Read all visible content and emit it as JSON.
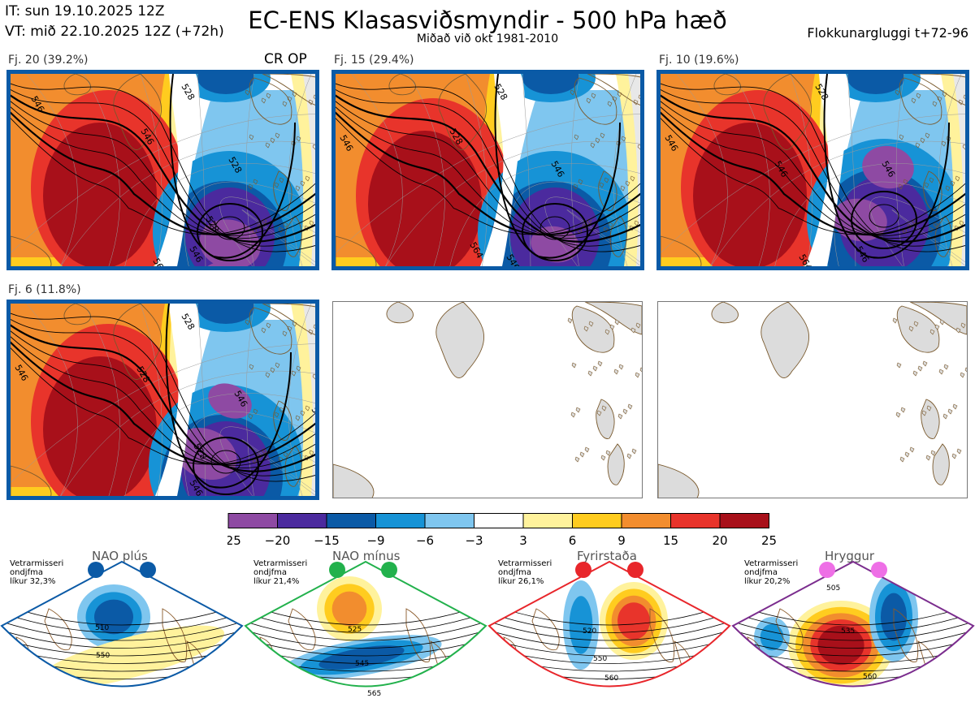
{
  "header": {
    "it_line": "IT: sun 19.10.2025 12Z",
    "vt_line": "VT: mið 22.10.2025 12Z  (+72h)",
    "title": "EC-ENS Klasasviðsmyndir - 500 hPa hæð",
    "subtitle": "Miðað við okt 1981-2010",
    "window": "Flokkunargluggi t+72-96"
  },
  "clusters": [
    {
      "label": "Fj. 20 (39.2%)",
      "tag": "CR OP",
      "contours": [
        "546",
        "528",
        "528",
        "546",
        "564",
        "546",
        "528",
        "564"
      ]
    },
    {
      "label": "Fj. 15 (29.4%)",
      "tag": "",
      "contours": [
        "546",
        "528",
        "546",
        "528",
        "564",
        "546",
        "564"
      ]
    },
    {
      "label": "Fj. 10 (19.6%)",
      "tag": "",
      "contours": [
        "546",
        "528",
        "546",
        "546",
        "564",
        "546",
        "564"
      ]
    },
    {
      "label": "Fj. 6 (11.8%)",
      "tag": "",
      "contours": [
        "546",
        "528",
        "546",
        "528",
        "546",
        "528",
        "564",
        "546"
      ]
    }
  ],
  "colorbar": {
    "ticks": [
      "−25",
      "−20",
      "−15",
      "−9",
      "−6",
      "−3",
      "3",
      "6",
      "9",
      "15",
      "20",
      "25"
    ],
    "colors": [
      "#8e4aa3",
      "#4b2a9e",
      "#0b5aa6",
      "#1793d6",
      "#7fc6ef",
      "#ffffff",
      "#fff29c",
      "#ffcc1f",
      "#f28d2e",
      "#e8342b",
      "#a8101a"
    ]
  },
  "regimes": [
    {
      "name": "NAO plús",
      "season": "Vetrarmisseri",
      "type": "ondjfma",
      "prob": "líkur 32,3%",
      "color": "#0b5aa6",
      "contours": [
        "510",
        "550"
      ]
    },
    {
      "name": "NAO mínus",
      "season": "Vetrarmisseri",
      "type": "ondjfma",
      "prob": "líkur 21,4%",
      "color": "#22b14c",
      "contours": [
        "525",
        "545",
        "565"
      ]
    },
    {
      "name": "Fyrirstaða",
      "season": "Vetrarmisseri",
      "type": "ondjfma",
      "prob": "líkur 26,1%",
      "color": "#e8262b",
      "contours": [
        "520",
        "550",
        "560"
      ]
    },
    {
      "name": "Hryggur",
      "season": "Vetrarmisseri",
      "type": "ondjfma",
      "prob": "líkur 20,2%",
      "color": "#7b2d8e",
      "contours": [
        "505",
        "535",
        "560"
      ]
    }
  ]
}
